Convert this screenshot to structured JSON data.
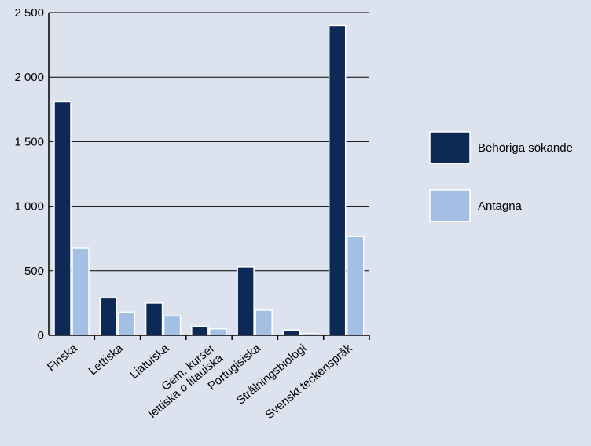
{
  "chart_data": {
    "type": "bar",
    "title": "",
    "xlabel": "",
    "ylabel": "",
    "ylim": [
      0,
      2500
    ],
    "yticks": [
      0,
      500,
      1000,
      1500,
      2000,
      2500
    ],
    "ytick_labels": [
      "0",
      "500",
      "1 000",
      "1 500",
      "2 000",
      "2 500"
    ],
    "grid": true,
    "legend_position": "right",
    "categories": [
      [
        "Finska"
      ],
      [
        "Lettiska"
      ],
      [
        "Liatuiska"
      ],
      [
        "Gem. kurser",
        "lettiska o litauiska"
      ],
      [
        "Portugisiska"
      ],
      [
        "Strålningsbiologi"
      ],
      [
        "Svenskt teckenspråk"
      ]
    ],
    "series": [
      {
        "name": "Behöriga sökande",
        "color": "#0d2a56",
        "values": [
          1810,
          290,
          250,
          70,
          530,
          40,
          2400
        ]
      },
      {
        "name": "Antagna",
        "color": "#a3bfe3",
        "values": [
          675,
          180,
          150,
          50,
          195,
          15,
          765
        ]
      }
    ]
  }
}
